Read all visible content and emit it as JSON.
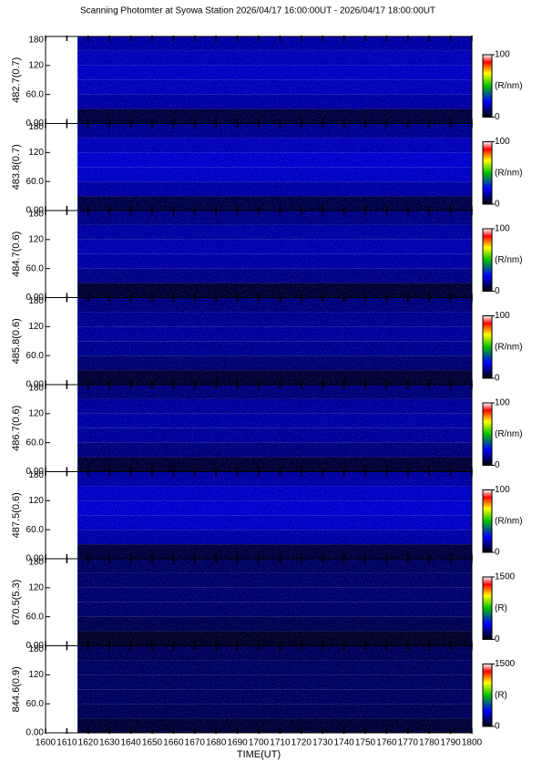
{
  "title": "Scanning Photomter at Syowa Station 2026/04/17 16:00:00UT - 2026/04/17 18:00:00UT",
  "x_axis": {
    "label": "TIME(UT)",
    "xlim": [
      1600,
      1800
    ],
    "xticks": [
      1600,
      1610,
      1620,
      1630,
      1640,
      1650,
      1660,
      1670,
      1680,
      1690,
      1700,
      1710,
      1720,
      1730,
      1740,
      1750,
      1760,
      1770,
      1780,
      1790,
      1800
    ]
  },
  "chart_data": [
    {
      "type": "heatmap",
      "ylabel": "482.7(0.7)",
      "ylim": [
        0,
        180
      ],
      "yticks": [
        {
          "value": 0,
          "label": "0.00"
        },
        {
          "value": 60,
          "label": "60.0"
        },
        120,
        180
      ],
      "x_edges": [
        1615,
        1800
      ],
      "y_edges": [
        0,
        30,
        60,
        90,
        120,
        150,
        180
      ],
      "values": [
        6,
        16,
        18,
        19,
        18,
        16
      ],
      "clim": [
        0,
        100
      ],
      "cticks": [
        0,
        100
      ],
      "cbar_label": "(R/nm)"
    },
    {
      "type": "heatmap",
      "ylabel": "483.8(0.7)",
      "ylim": [
        0,
        180
      ],
      "yticks": [
        {
          "value": 0,
          "label": "0.00"
        },
        {
          "value": 60,
          "label": "60.0"
        },
        120,
        180
      ],
      "x_edges": [
        1615,
        1800
      ],
      "y_edges": [
        0,
        30,
        60,
        90,
        120,
        150,
        180
      ],
      "values": [
        7,
        16,
        19,
        20,
        18,
        14
      ],
      "clim": [
        0,
        100
      ],
      "cticks": [
        0,
        100
      ],
      "cbar_label": "(R/nm)"
    },
    {
      "type": "heatmap",
      "ylabel": "484.7(0.6)",
      "ylim": [
        0,
        180
      ],
      "yticks": [
        {
          "value": 0,
          "label": "0.00"
        },
        {
          "value": 60,
          "label": "60.0"
        },
        120,
        180
      ],
      "x_edges": [
        1615,
        1800
      ],
      "y_edges": [
        0,
        30,
        60,
        90,
        120,
        150,
        180
      ],
      "values": [
        5,
        13,
        16,
        17,
        16,
        13
      ],
      "clim": [
        0,
        100
      ],
      "cticks": [
        0,
        100
      ],
      "cbar_label": "(R/nm)"
    },
    {
      "type": "heatmap",
      "ylabel": "485.8(0.6)",
      "ylim": [
        0,
        180
      ],
      "yticks": [
        {
          "value": 0,
          "label": "0.00"
        },
        {
          "value": 60,
          "label": "60.0"
        },
        120,
        180
      ],
      "x_edges": [
        1615,
        1800
      ],
      "y_edges": [
        0,
        30,
        60,
        90,
        120,
        150,
        180
      ],
      "values": [
        5,
        11,
        14,
        15,
        14,
        12
      ],
      "clim": [
        0,
        100
      ],
      "cticks": [
        0,
        100
      ],
      "cbar_label": "(R/nm)"
    },
    {
      "type": "heatmap",
      "ylabel": "486.7(0.6)",
      "ylim": [
        0,
        180
      ],
      "yticks": [
        {
          "value": 0,
          "label": "0.00"
        },
        {
          "value": 60,
          "label": "60.0"
        },
        120,
        180
      ],
      "x_edges": [
        1615,
        1800
      ],
      "y_edges": [
        0,
        30,
        60,
        90,
        120,
        150,
        180
      ],
      "values": [
        5,
        12,
        15,
        16,
        15,
        12
      ],
      "clim": [
        0,
        100
      ],
      "cticks": [
        0,
        100
      ],
      "cbar_label": "(R/nm)"
    },
    {
      "type": "heatmap",
      "ylabel": "487.5(0.6)",
      "ylim": [
        0,
        180
      ],
      "yticks": [
        {
          "value": 0,
          "label": "0.00"
        },
        {
          "value": 60,
          "label": "60.0"
        },
        120,
        180
      ],
      "x_edges": [
        1615,
        1800
      ],
      "y_edges": [
        0,
        30,
        60,
        90,
        120,
        150,
        180
      ],
      "values": [
        6,
        16,
        19,
        20,
        19,
        16
      ],
      "clim": [
        0,
        100
      ],
      "cticks": [
        0,
        100
      ],
      "cbar_label": "(R/nm)"
    },
    {
      "type": "heatmap",
      "ylabel": "670.5(5.3)",
      "ylim": [
        0,
        180
      ],
      "yticks": [
        {
          "value": 0,
          "label": "0.00"
        },
        {
          "value": 60,
          "label": "60.0"
        },
        120,
        180
      ],
      "x_edges": [
        1615,
        1800
      ],
      "y_edges": [
        0,
        30,
        60,
        90,
        120,
        150,
        180
      ],
      "values": [
        60,
        120,
        150,
        160,
        150,
        140
      ],
      "clim": [
        0,
        1500
      ],
      "cticks": [
        0,
        1500
      ],
      "cbar_label": "(R)"
    },
    {
      "type": "heatmap",
      "ylabel": "844.6(0.9)",
      "ylim": [
        0,
        180
      ],
      "yticks": [
        {
          "value": 0,
          "label": "0.00"
        },
        {
          "value": 60,
          "label": "60.0"
        },
        120,
        180
      ],
      "x_edges": [
        1615,
        1800
      ],
      "y_edges": [
        0,
        30,
        60,
        90,
        120,
        150,
        180
      ],
      "values": [
        80,
        130,
        140,
        140,
        140,
        130
      ],
      "clim": [
        0,
        1500
      ],
      "cticks": [
        0,
        1500
      ],
      "cbar_label": "(R)"
    }
  ]
}
